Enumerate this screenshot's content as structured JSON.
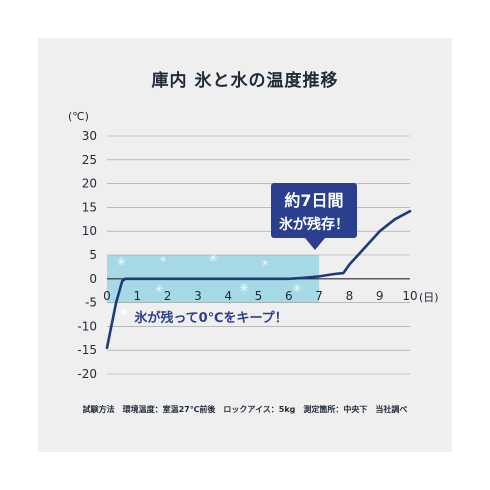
{
  "title": "庫内 氷と水の温度推移",
  "footnote": "試験方法　環境温度：室温27℃前後　ロックアイス：5kg　測定箇所：中央下　当社調べ",
  "colors": {
    "line": "#1f3a78",
    "band": "#a6d9e6",
    "callout": "#2b3f8f",
    "grid": "#9a9a9a",
    "text": "#1f2a38"
  },
  "icons": [
    "snowflake-icon"
  ],
  "chart_data": {
    "type": "line",
    "title": "庫内 氷と水の温度推移",
    "y_unit_label": "(℃)",
    "x_unit_label": "(日)",
    "xlim": [
      0,
      10
    ],
    "ylim": [
      -20,
      30
    ],
    "x_ticks": [
      "0",
      "1",
      "2",
      "3",
      "4",
      "5",
      "6",
      "7",
      "8",
      "9",
      "10"
    ],
    "y_ticks": [
      "30",
      "25",
      "20",
      "15",
      "10",
      "5",
      "0",
      "-5",
      "-10",
      "-15",
      "-20"
    ],
    "grid": "horizontal",
    "series": [
      {
        "x": [
          0,
          0.3,
          0.5,
          0.6,
          1,
          2,
          3,
          4,
          5,
          6,
          6.5,
          7,
          7.5,
          7.8,
          8,
          8.5,
          9,
          9.5,
          10
        ],
        "y": [
          -14.5,
          -5,
          -0.5,
          0,
          0,
          0,
          0,
          0,
          0,
          0,
          0.2,
          0.5,
          1,
          1.2,
          3,
          6.5,
          10,
          12.5,
          14.2
        ]
      }
    ],
    "highlight_band": {
      "x_range": [
        0,
        7
      ],
      "y_range": [
        -5,
        5
      ]
    },
    "annotations": {
      "callout_line1": "約7日間",
      "callout_line2": "氷が残存！",
      "banner": "氷が残って0℃をキープ！"
    }
  }
}
